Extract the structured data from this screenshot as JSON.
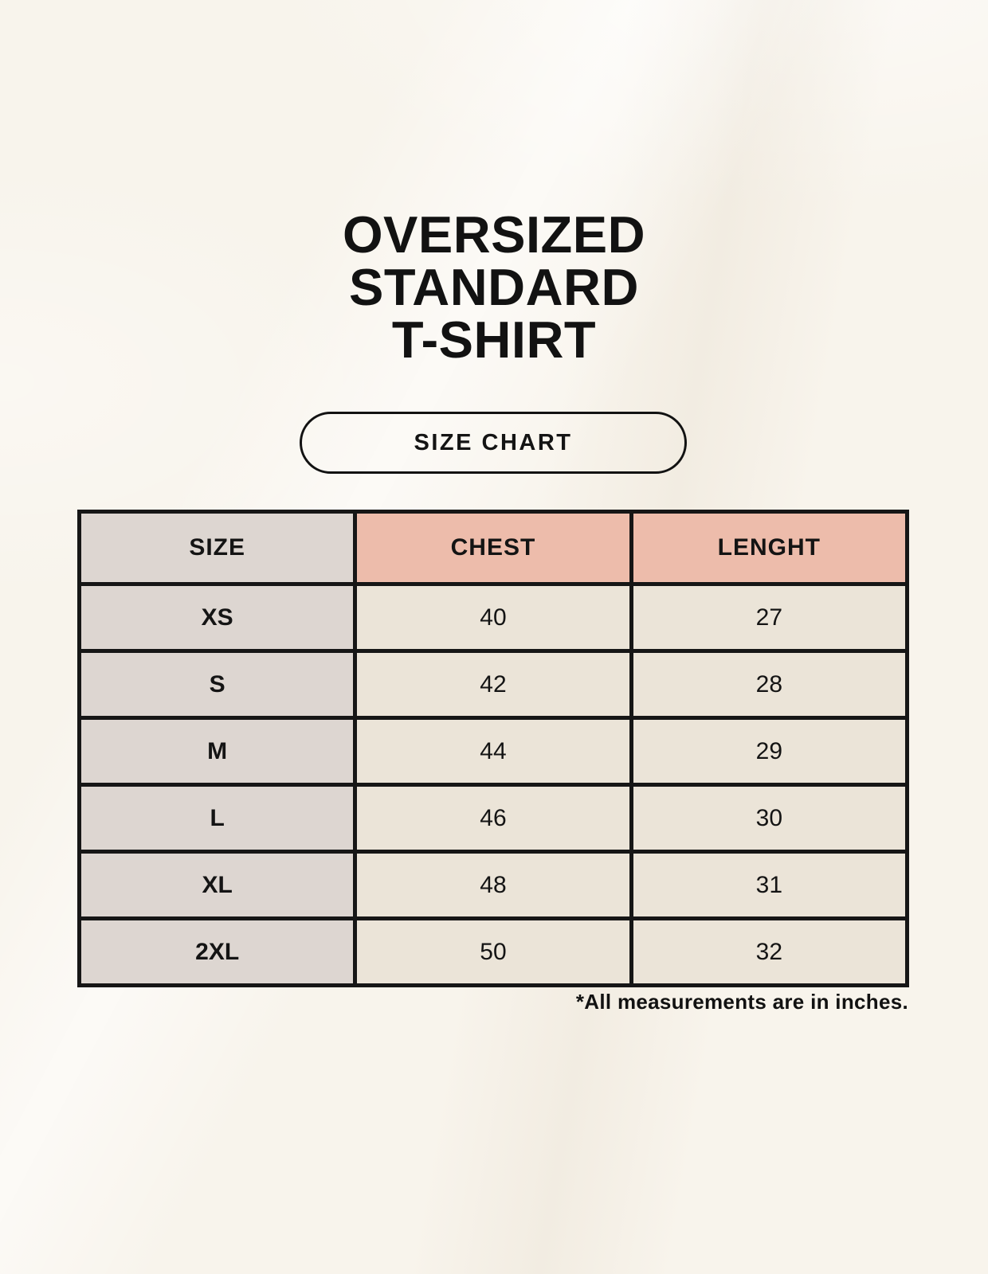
{
  "page": {
    "title_lines": [
      "OVERSIZED",
      "STANDARD",
      "T-SHIRT"
    ],
    "badge_label": "SIZE CHART",
    "footnote": "*All measurements are in inches."
  },
  "colors": {
    "background_cream": "#f8f4ec",
    "header_pink": "#edbcab",
    "label_gray": "#ddd6d1",
    "cell_cream": "#ebe4d8",
    "border_black": "#161616",
    "text_black": "#121212"
  },
  "table": {
    "headers": [
      {
        "label": "SIZE"
      },
      {
        "label": "CHEST"
      },
      {
        "label": "LENGHT"
      }
    ],
    "rows": [
      {
        "size": "XS",
        "chest": "40",
        "length": "27"
      },
      {
        "size": "S",
        "chest": "42",
        "length": "28"
      },
      {
        "size": "M",
        "chest": "44",
        "length": "29"
      },
      {
        "size": "L",
        "chest": "46",
        "length": "30"
      },
      {
        "size": "XL",
        "chest": "48",
        "length": "31"
      },
      {
        "size": "2XL",
        "chest": "50",
        "length": "32"
      }
    ]
  },
  "chart_data": {
    "type": "table",
    "title": "OVERSIZED STANDARD T-SHIRT — SIZE CHART",
    "columns": [
      "SIZE",
      "CHEST",
      "LENGHT"
    ],
    "rows": [
      [
        "XS",
        40,
        27
      ],
      [
        "S",
        42,
        28
      ],
      [
        "M",
        44,
        29
      ],
      [
        "L",
        46,
        30
      ],
      [
        "XL",
        48,
        31
      ],
      [
        "2XL",
        50,
        32
      ]
    ],
    "units_note": "*All measurements are in inches."
  }
}
